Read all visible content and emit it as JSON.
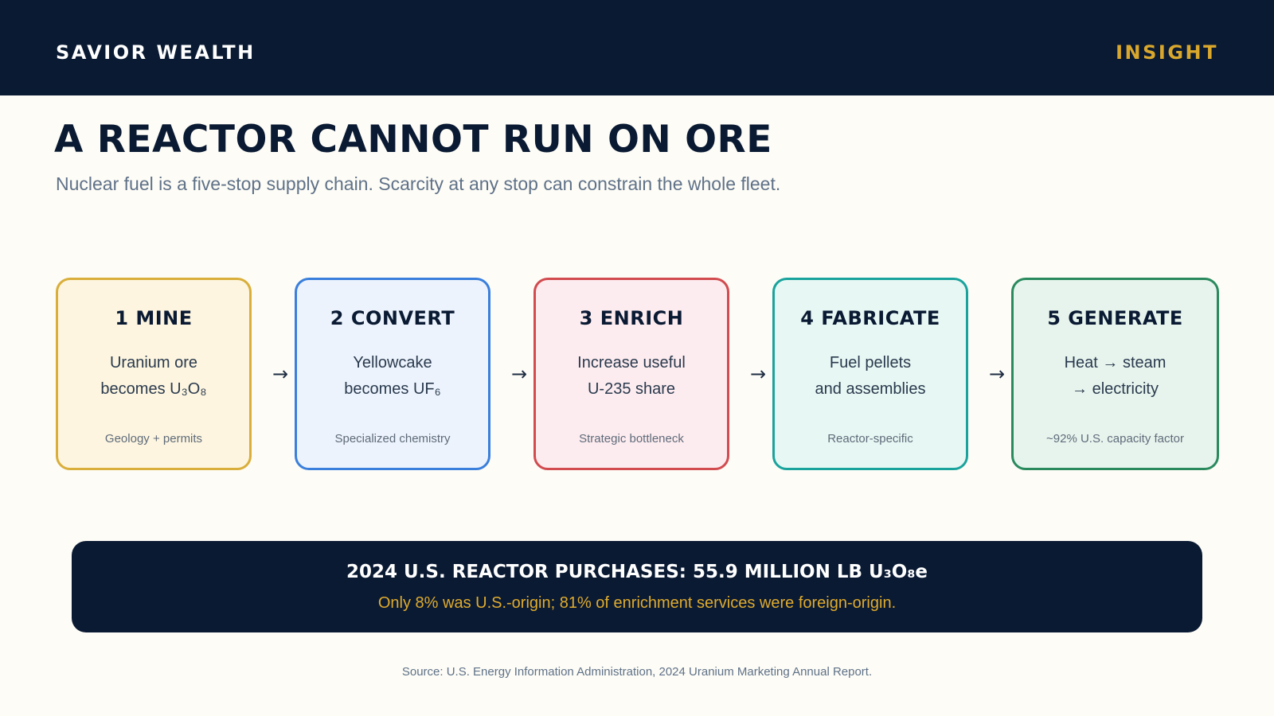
{
  "header": {
    "brand": "SAVIOR WEALTH",
    "tag": "INSIGHT"
  },
  "title": "A REACTOR CANNOT RUN ON ORE",
  "subtitle": "Nuclear fuel is a five-stop supply chain. Scarcity at any stop can constrain the whole fleet.",
  "steps": [
    {
      "title": "1 MINE",
      "line1": "Uranium ore",
      "line2": "becomes U₃O₈",
      "note": "Geology + permits",
      "border_color": "#d9ae3a",
      "fill_color": "#fdf5df"
    },
    {
      "title": "2 CONVERT",
      "line1": "Yellowcake",
      "line2": "becomes UF₆",
      "note": "Specialized chemistry",
      "border_color": "#3a7fdc",
      "fill_color": "#ecf3fc"
    },
    {
      "title": "3 ENRICH",
      "line1": "Increase useful",
      "line2": "U-235 share",
      "note": "Strategic bottleneck",
      "border_color": "#d14b4f",
      "fill_color": "#fdecef"
    },
    {
      "title": "4 FABRICATE",
      "line1": "Fuel pellets",
      "line2": "and assemblies",
      "note": "Reactor-specific",
      "border_color": "#1aa39d",
      "fill_color": "#e7f7f3"
    },
    {
      "title": "5 GENERATE",
      "line1": "Heat → steam",
      "line2": "→ electricity",
      "note": "~92% U.S. capacity factor",
      "border_color": "#2a8a5e",
      "fill_color": "#e7f4ed"
    }
  ],
  "arrow_glyph": "→",
  "banner": {
    "headline": "2024 U.S. REACTOR PURCHASES: 55.9 MILLION LB U₃O₈e",
    "subline": "Only 8% was U.S.-origin; 81% of enrichment services were foreign-origin."
  },
  "source": "Source: U.S. Energy Information Administration, 2024 Uranium Marketing Annual Report."
}
